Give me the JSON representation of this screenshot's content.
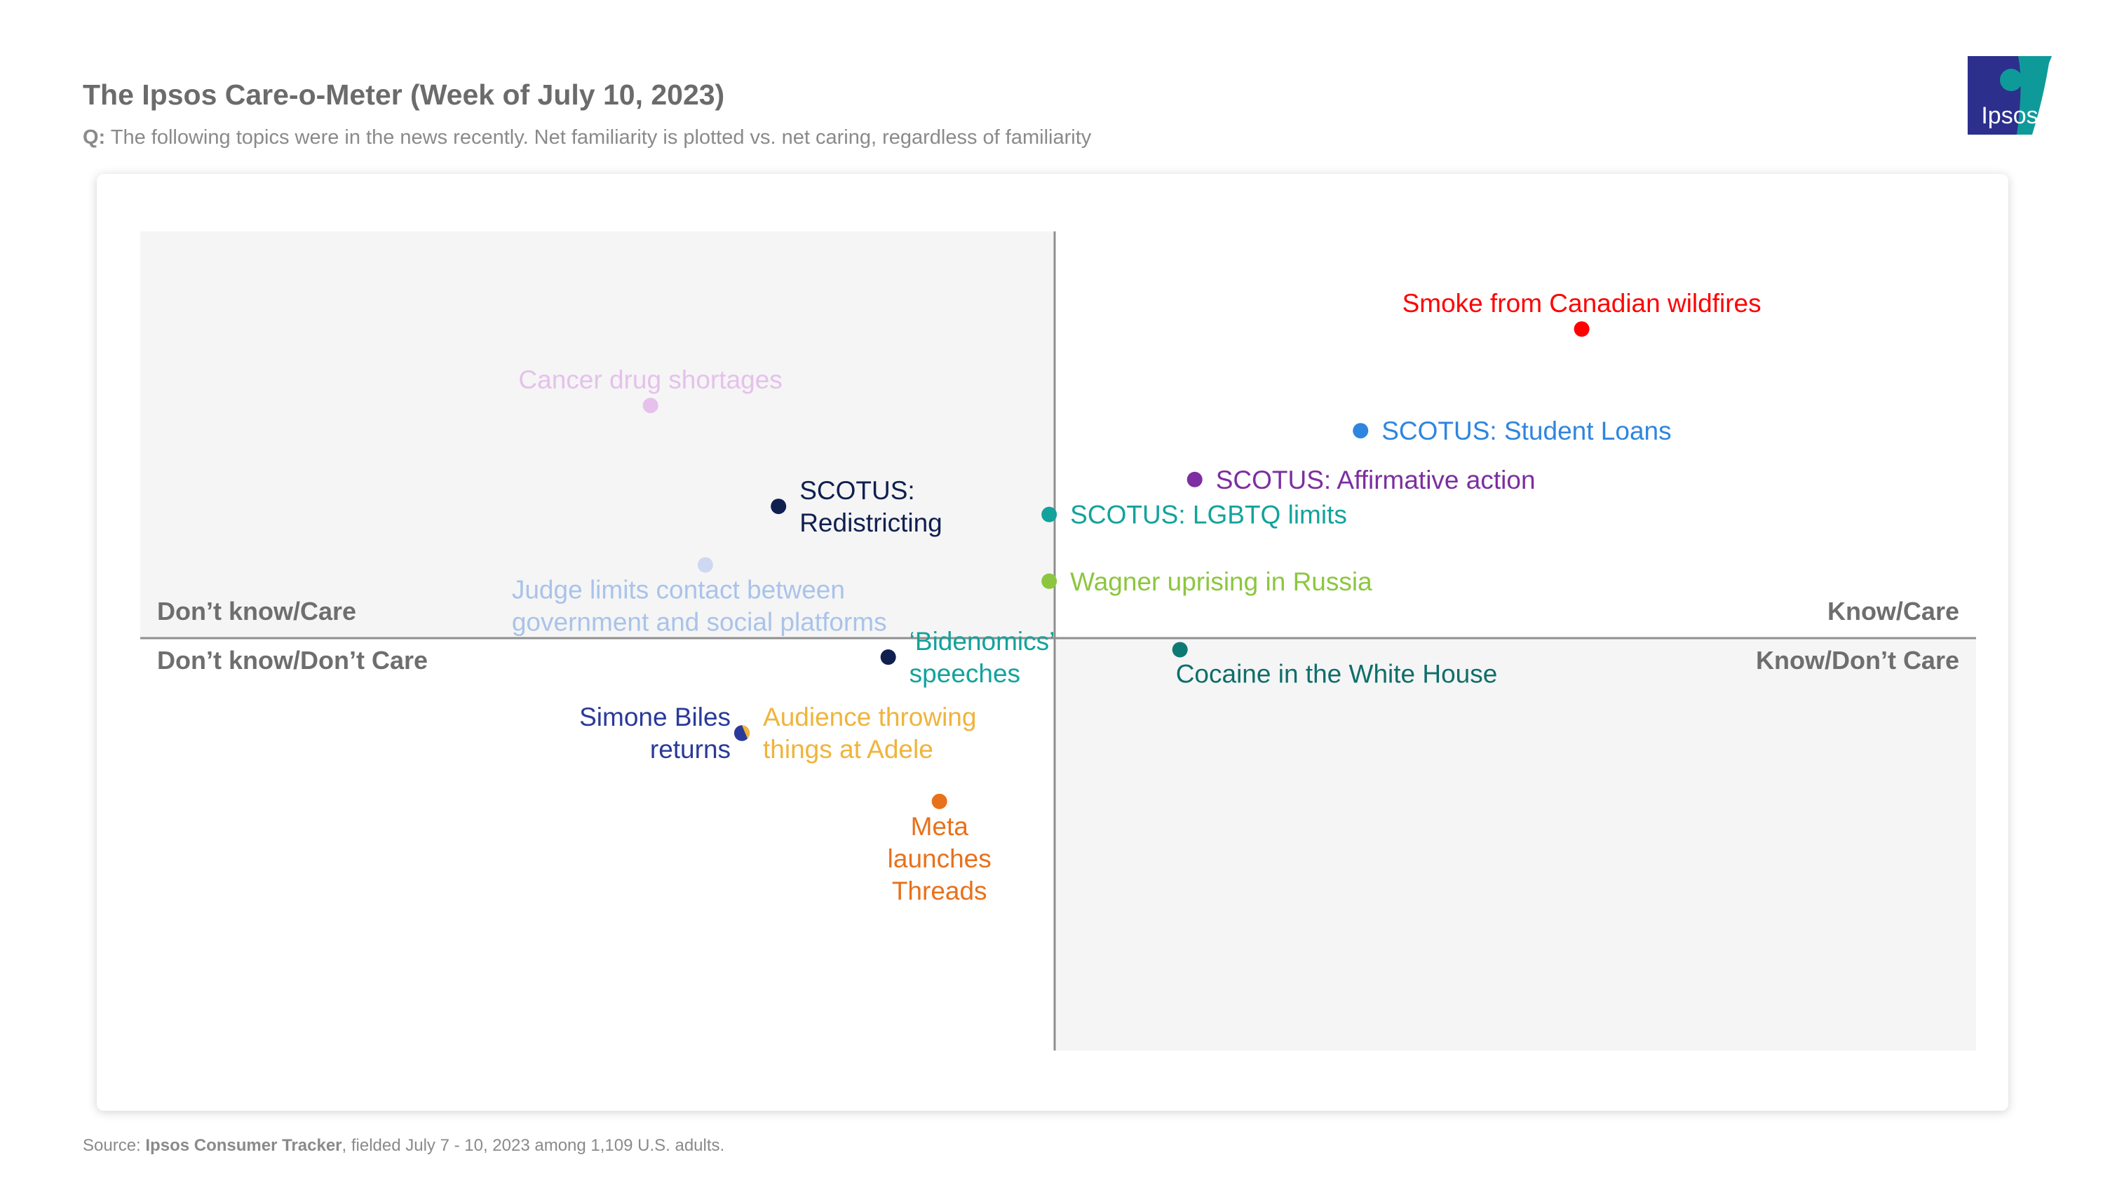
{
  "header": {
    "title": "The Ipsos Care-o-Meter (Week of July 10, 2023)",
    "subtitle_prefix": "Q:",
    "subtitle_text": "The following topics were in the news recently. Net familiarity is plotted vs. net caring, regardless of familiarity"
  },
  "logo": {
    "text": "Ipsos",
    "color": "#0f9a9a",
    "accent": "#2c2f8c"
  },
  "footer": {
    "source_prefix": "Source:",
    "source_name": "Ipsos Consumer Tracker",
    "source_rest": ", fielded July 7 - 10, 2023 among 1,109 U.S. adults."
  },
  "chart_data": {
    "type": "scatter",
    "title": "The Ipsos Care-o-Meter (Week of July 10, 2023)",
    "xlabel": "Net familiarity",
    "ylabel": "Net caring",
    "xlim": [
      -50,
      50
    ],
    "ylim": [
      -50,
      50
    ],
    "grid": false,
    "quadrants": {
      "top_left": "Don’t know/Care",
      "top_right": "Know/Care",
      "bottom_left": "Don’t know/Don’t Care",
      "bottom_right": "Know/Don’t Care"
    },
    "points": [
      {
        "label": [
          "Smoke from Canadian wildfires"
        ],
        "x": 28.6,
        "y": 38.0,
        "color": "#ff0000",
        "label_pos": "above"
      },
      {
        "label": [
          "SCOTUS: Student Loans"
        ],
        "x": 16.6,
        "y": 25.5,
        "color": "#2e86de",
        "label_pos": "right"
      },
      {
        "label": [
          "SCOTUS: Affirmative action"
        ],
        "x": 7.6,
        "y": 19.5,
        "color": "#7d2ea0",
        "label_pos": "right"
      },
      {
        "label": [
          "SCOTUS: LGBTQ limits"
        ],
        "x": -0.3,
        "y": 15.2,
        "color": "#12a39c",
        "label_pos": "right"
      },
      {
        "label": [
          "Wagner uprising in Russia"
        ],
        "x": -0.3,
        "y": 7.0,
        "color": "#8cc63f",
        "label_pos": "right"
      },
      {
        "label": [
          "Cancer drug shortages"
        ],
        "x": -22.1,
        "y": 28.6,
        "color": "#e5c1ec",
        "label_pos": "above"
      },
      {
        "label": [
          "SCOTUS:",
          "Redistricting"
        ],
        "x": -15.1,
        "y": 16.2,
        "color": "#0f2050",
        "label_pos": "right"
      },
      {
        "label": [
          "Judge limits contact between",
          "government and social platforms"
        ],
        "x": -19.1,
        "y": 9.0,
        "color": "#cfd8f2",
        "label_color": "#a9c3ea",
        "label_pos": "below"
      },
      {
        "label": [
          "‘Bidenomics’",
          "speeches"
        ],
        "x": -9.1,
        "y": -2.3,
        "color": "#0f2050",
        "label_color": "#12a39c",
        "label_pos": "right"
      },
      {
        "label": [
          "Cocaine in the White House"
        ],
        "x": 6.8,
        "y": -1.4,
        "color": "#0f7a73",
        "label_color": "#0f6e6a",
        "label_pos": "below"
      },
      {
        "label": [
          "Simone Biles",
          "returns"
        ],
        "x": -17.1,
        "y": -11.5,
        "color": "#2a3a9a",
        "label_pos": "left"
      },
      {
        "label": [
          "Audience throwing",
          "things at Adele"
        ],
        "x": -17.1,
        "y": -11.5,
        "color": "#f0b43a",
        "label_pos": "right"
      },
      {
        "label": [
          "Meta",
          "launches",
          "Threads"
        ],
        "x": -6.3,
        "y": -19.8,
        "color": "#e8711a",
        "label_pos": "below"
      }
    ]
  }
}
